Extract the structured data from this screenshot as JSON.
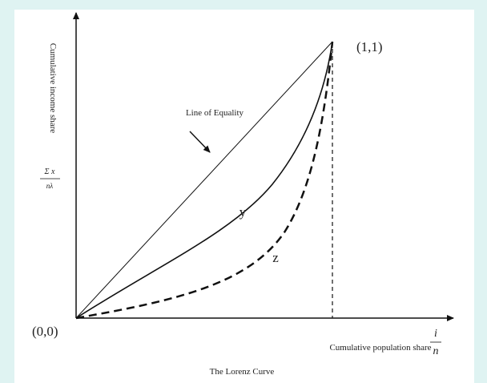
{
  "y_axis": {
    "label": "Cumulative income share",
    "fraction": {
      "numerator": "Σ x",
      "denominator": "nλ"
    }
  },
  "x_axis": {
    "label": "Cumulative population share",
    "fraction": {
      "numerator": "i",
      "denominator": "n"
    }
  },
  "points": {
    "origin": "(0,0)",
    "end": "(1,1)"
  },
  "annotations": {
    "equality": "Line of Equality",
    "curve_y": "y",
    "curve_z": "z"
  },
  "caption": "The Lorenz Curve"
}
